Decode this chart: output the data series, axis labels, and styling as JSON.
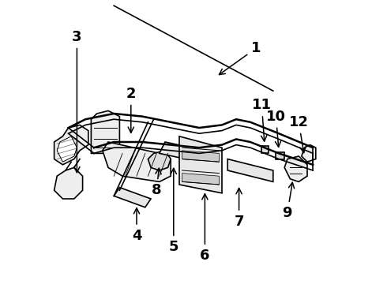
{
  "bg_color": "#ffffff",
  "line_color": "#000000",
  "line_width": 1.2,
  "label_fontsize": 13,
  "figsize": [
    4.9,
    3.6
  ],
  "dpi": 100,
  "labels": {
    "1": {
      "lpos": [
        0.72,
        0.83
      ],
      "apos": [
        0.58,
        0.73
      ]
    },
    "2": {
      "lpos": [
        0.28,
        0.67
      ],
      "apos": [
        0.28,
        0.52
      ]
    },
    "3": {
      "lpos": [
        0.09,
        0.87
      ],
      "apos": [
        0.09,
        0.38
      ]
    },
    "4": {
      "lpos": [
        0.3,
        0.17
      ],
      "apos": [
        0.3,
        0.28
      ]
    },
    "5": {
      "lpos": [
        0.43,
        0.13
      ],
      "apos": [
        0.43,
        0.42
      ]
    },
    "6": {
      "lpos": [
        0.54,
        0.1
      ],
      "apos": [
        0.54,
        0.33
      ]
    },
    "7": {
      "lpos": [
        0.66,
        0.22
      ],
      "apos": [
        0.66,
        0.35
      ]
    },
    "8": {
      "lpos": [
        0.37,
        0.33
      ],
      "apos": [
        0.38,
        0.42
      ]
    },
    "9": {
      "lpos": [
        0.83,
        0.25
      ],
      "apos": [
        0.85,
        0.37
      ]
    },
    "10": {
      "lpos": [
        0.79,
        0.59
      ],
      "apos": [
        0.8,
        0.47
      ]
    },
    "11": {
      "lpos": [
        0.74,
        0.63
      ],
      "apos": [
        0.75,
        0.49
      ]
    },
    "12": {
      "lpos": [
        0.87,
        0.57
      ],
      "apos": [
        0.89,
        0.45
      ]
    }
  }
}
